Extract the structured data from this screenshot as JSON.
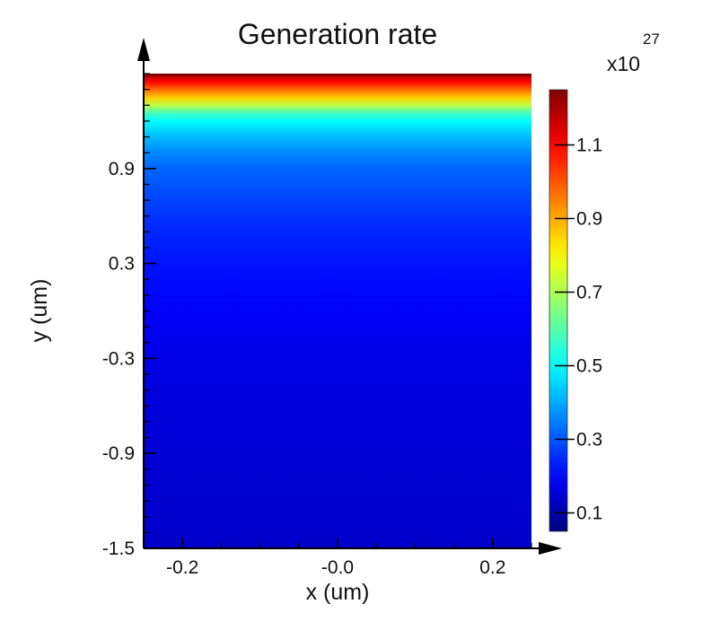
{
  "chart_data": {
    "type": "heatmap",
    "title": "Generation rate",
    "xlabel": "x (um)",
    "ylabel": "y (um)",
    "x_ticks": [
      "-0.2",
      "-0.0",
      "0.2"
    ],
    "y_ticks": [
      "0.9",
      "0.3",
      "-0.3",
      "-0.9",
      "-1.5"
    ],
    "x_tick_values": [
      -0.2,
      0.0,
      0.2
    ],
    "y_tick_values": [
      0.9,
      0.3,
      -0.3,
      -0.9,
      -1.5
    ],
    "xlim": [
      -0.25,
      0.25
    ],
    "ylim": [
      -1.5,
      1.5
    ],
    "colorbar": {
      "multiplier": "x10",
      "exponent": "27",
      "ticks": [
        "0.1",
        "0.3",
        "0.5",
        "0.7",
        "0.9",
        "1.1"
      ],
      "tick_values": [
        0.1,
        0.3,
        0.5,
        0.7,
        0.9,
        1.1
      ],
      "range": [
        0.05,
        1.25
      ],
      "colormap": "jet"
    },
    "profile": {
      "description_axis": "y",
      "y": [
        1.5,
        1.45,
        1.4,
        1.35,
        1.3,
        1.25,
        1.2,
        1.1,
        1.0,
        0.9,
        0.6,
        0.3,
        0.0,
        -0.5,
        -1.0,
        -1.5
      ],
      "value": [
        1.22,
        1.1,
        0.98,
        0.86,
        0.72,
        0.58,
        0.5,
        0.42,
        0.36,
        0.32,
        0.26,
        0.22,
        0.19,
        0.16,
        0.15,
        0.14
      ]
    }
  }
}
